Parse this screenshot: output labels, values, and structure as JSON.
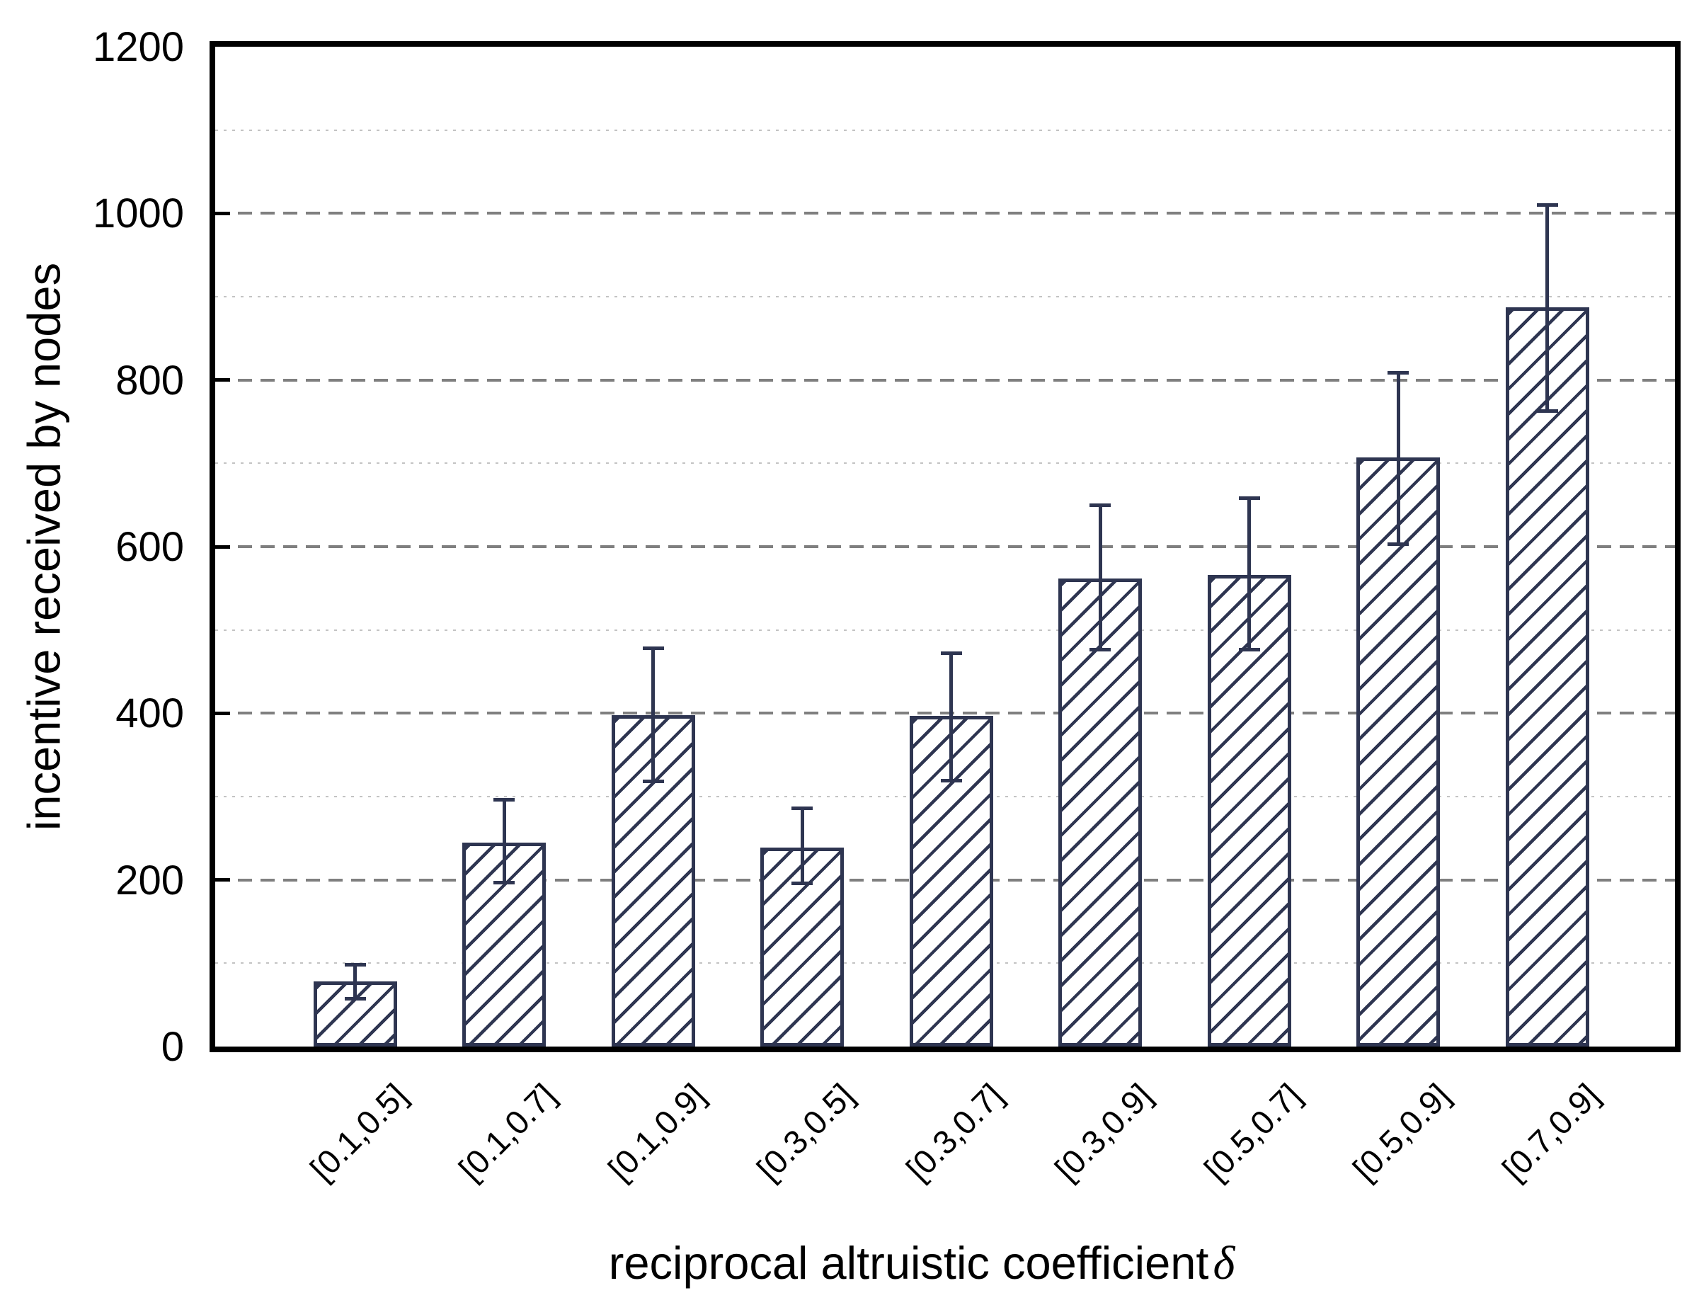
{
  "figure": {
    "y_axis_title": "incentive received by nodes",
    "x_axis_title": "reciprocal altruistic coefficient",
    "x_axis_title_symbol": "δ"
  },
  "chart_data": {
    "type": "bar",
    "title": "",
    "xlabel": "reciprocal altruistic coefficient δ",
    "ylabel": "incentive received by nodes",
    "categories": [
      "[0.1,0.5]",
      "[0.1,0.7]",
      "[0.1,0.9]",
      "[0.3,0.5]",
      "[0.3,0.7]",
      "[0.3,0.9]",
      "[0.5,0.7]",
      "[0.5,0.9]",
      "[0.7,0.9]"
    ],
    "values": [
      78,
      245,
      398,
      239,
      397,
      562,
      566,
      707,
      887
    ],
    "error_up": [
      20,
      51,
      80,
      47,
      75,
      88,
      92,
      102,
      123
    ],
    "error_down": [
      21,
      48,
      80,
      43,
      78,
      86,
      90,
      104,
      124
    ],
    "ylim": [
      0,
      1200
    ],
    "y_major_ticks": [
      0,
      200,
      400,
      600,
      800,
      1000,
      1200
    ],
    "y_major_gridlines": [
      200,
      400,
      600,
      800,
      1000
    ],
    "y_minor_gridlines": [
      100,
      300,
      500,
      700,
      900,
      1100
    ],
    "grid_style": {
      "major": "dashed",
      "minor": "dotted"
    },
    "legend": "none",
    "bar_style": {
      "fill": "#ffffff",
      "hatch": "/",
      "edge_color": "#2e3551"
    },
    "colors": {
      "bar_edge": "#2e3551",
      "major_grid": "#7f7f7f",
      "minor_grid": "#c3c3c3",
      "axis": "#000000",
      "text": "#000000"
    }
  }
}
